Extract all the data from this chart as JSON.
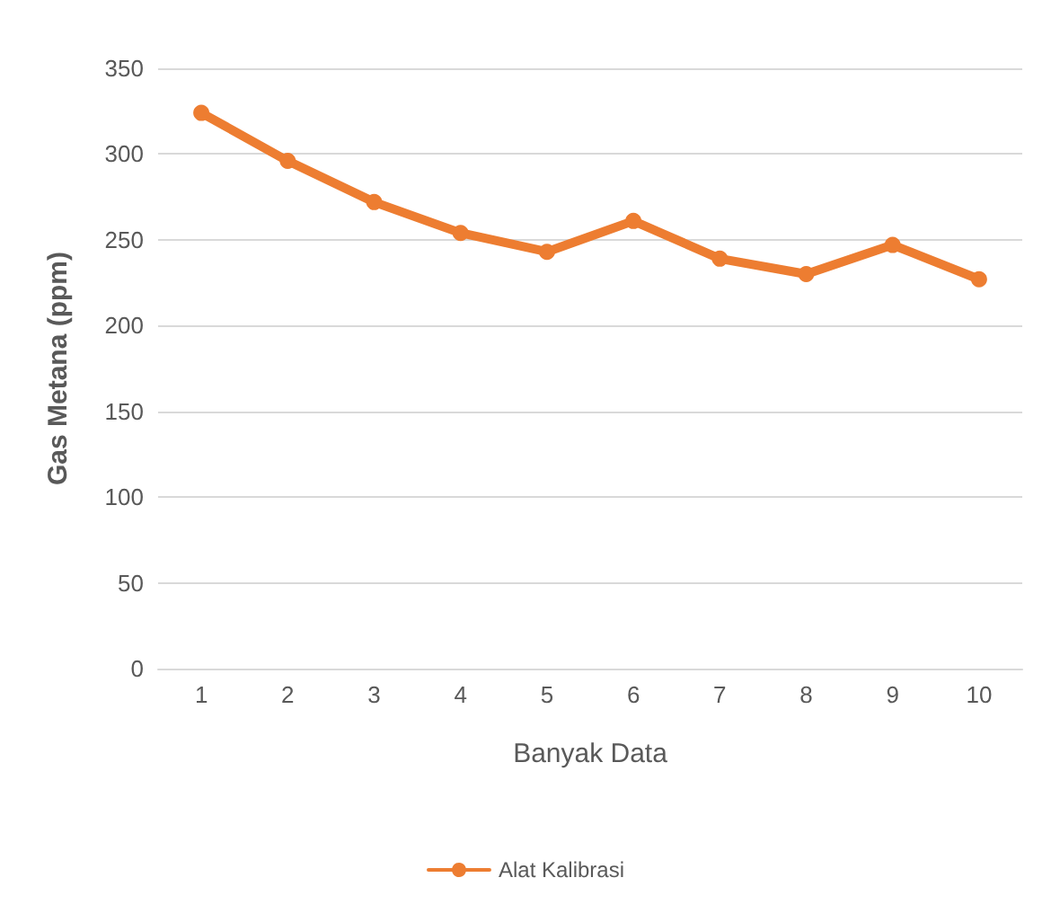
{
  "chart_data": {
    "type": "line",
    "xlabel": "Banyak Data",
    "ylabel": "Gas Metana (ppm)",
    "categories": [
      "1",
      "2",
      "3",
      "4",
      "5",
      "6",
      "7",
      "8",
      "9",
      "10"
    ],
    "series": [
      {
        "name": "Alat Kalibrasi",
        "color": "#ed7d31",
        "values": [
          324,
          296,
          272,
          254,
          243,
          261,
          239,
          230,
          247,
          227
        ]
      }
    ],
    "ylim": [
      0,
      350
    ],
    "yticks": [
      0,
      50,
      100,
      150,
      200,
      250,
      300,
      350
    ],
    "grid": "y",
    "legend": "bottom",
    "marker": "circle",
    "line_style": "solid"
  }
}
